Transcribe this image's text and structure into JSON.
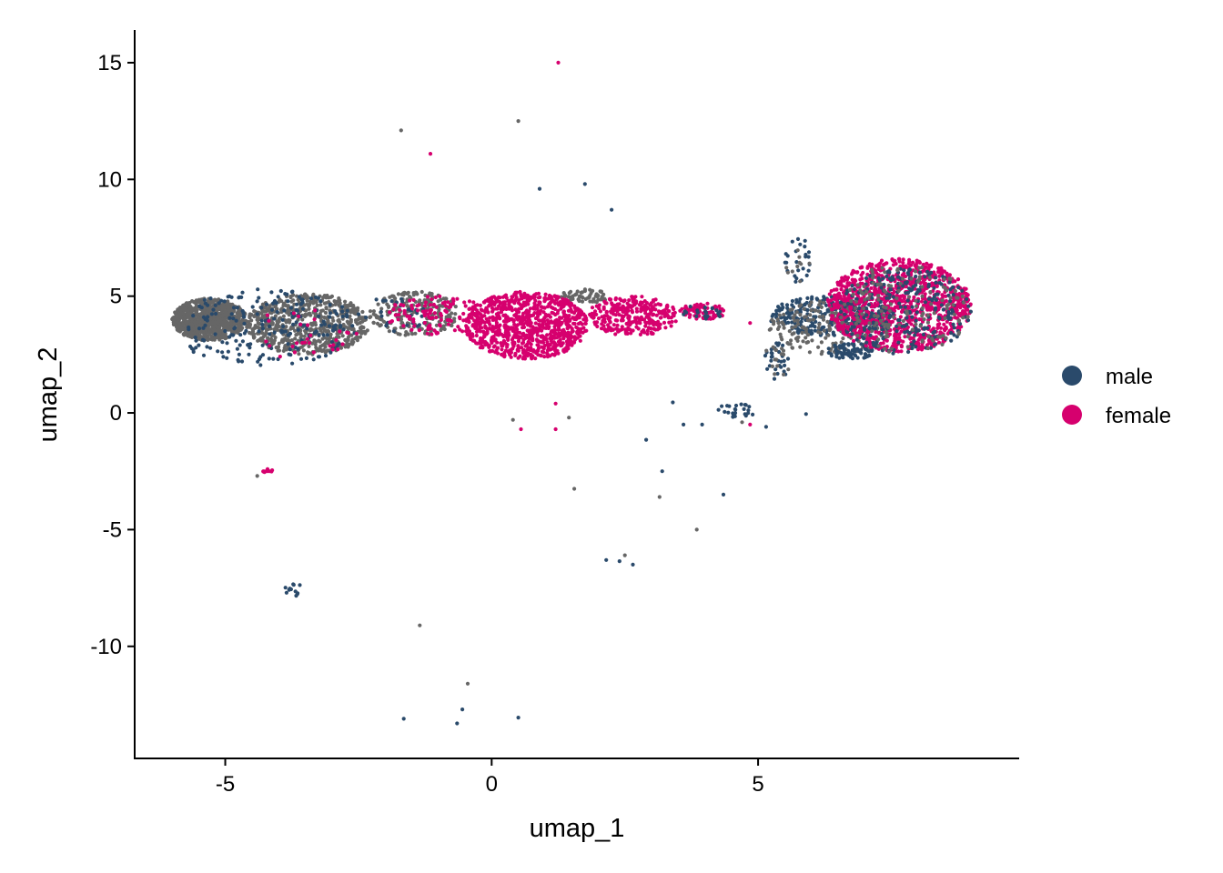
{
  "chart_data": {
    "type": "scatter",
    "title": "",
    "xlabel": "umap_1",
    "ylabel": "umap_2",
    "xlim": [
      -6.7,
      9.9
    ],
    "ylim": [
      -14.8,
      16.4
    ],
    "x_ticks": [
      {
        "value": -5,
        "label": "-5"
      },
      {
        "value": 0,
        "label": "0"
      },
      {
        "value": 5,
        "label": "5"
      }
    ],
    "y_ticks": [
      {
        "value": 15,
        "label": "15"
      },
      {
        "value": 10,
        "label": "10"
      },
      {
        "value": 5,
        "label": "5"
      },
      {
        "value": 0,
        "label": "0"
      },
      {
        "value": -5,
        "label": "-5"
      },
      {
        "value": -10,
        "label": "-10"
      }
    ],
    "grid": false,
    "legend_position": "right",
    "unlabeled_color": "#666666",
    "series": [
      {
        "name": "male",
        "color": "#2a4a6b"
      },
      {
        "name": "female",
        "color": "#d6006e"
      }
    ],
    "clusters": [
      {
        "group": "unlabeled",
        "n": 900,
        "x": [
          -6.0,
          -4.6
        ],
        "y": [
          3.1,
          4.9
        ]
      },
      {
        "group": "unlabeled",
        "n": 650,
        "x": [
          -4.6,
          -2.3
        ],
        "y": [
          2.5,
          5.1
        ]
      },
      {
        "group": "unlabeled",
        "n": 220,
        "x": [
          -2.3,
          -0.6
        ],
        "y": [
          3.3,
          5.2
        ]
      },
      {
        "group": "unlabeled",
        "n": 60,
        "x": [
          1.3,
          2.2
        ],
        "y": [
          4.7,
          5.3
        ]
      },
      {
        "group": "male",
        "n": 220,
        "x": [
          -6.0,
          -2.5
        ],
        "y": [
          2.0,
          5.3
        ]
      },
      {
        "group": "male",
        "n": 30,
        "x": [
          -2.5,
          -1.0
        ],
        "y": [
          3.5,
          5.0
        ]
      },
      {
        "group": "female",
        "n": 30,
        "x": [
          -4.8,
          -2.5
        ],
        "y": [
          2.3,
          4.5
        ]
      },
      {
        "group": "female",
        "n": 120,
        "x": [
          -2.0,
          0.0
        ],
        "y": [
          3.3,
          5.0
        ]
      },
      {
        "group": "female",
        "n": 900,
        "x": [
          -0.5,
          1.8
        ],
        "y": [
          2.3,
          5.2
        ]
      },
      {
        "group": "female",
        "n": 300,
        "x": [
          1.8,
          3.5
        ],
        "y": [
          3.3,
          5.0
        ]
      },
      {
        "group": "female",
        "n": 80,
        "x": [
          3.5,
          4.4
        ],
        "y": [
          4.0,
          4.7
        ]
      },
      {
        "group": "male",
        "n": 20,
        "x": [
          3.5,
          4.4
        ],
        "y": [
          4.0,
          4.6
        ]
      },
      {
        "group": "male",
        "n": 300,
        "x": [
          5.2,
          7.5
        ],
        "y": [
          3.3,
          5.0
        ]
      },
      {
        "group": "unlabeled",
        "n": 200,
        "x": [
          5.2,
          7.5
        ],
        "y": [
          2.5,
          4.8
        ]
      },
      {
        "group": "male",
        "n": 80,
        "x": [
          6.3,
          7.2
        ],
        "y": [
          2.3,
          3.0
        ]
      },
      {
        "group": "female",
        "n": 1100,
        "x": [
          6.3,
          9.0
        ],
        "y": [
          2.6,
          6.6
        ]
      },
      {
        "group": "male",
        "n": 260,
        "x": [
          6.5,
          9.0
        ],
        "y": [
          2.5,
          6.2
        ]
      },
      {
        "group": "unlabeled",
        "n": 140,
        "x": [
          6.5,
          9.0
        ],
        "y": [
          2.5,
          6.4
        ]
      },
      {
        "group": "male",
        "n": 25,
        "x": [
          5.5,
          6.0
        ],
        "y": [
          5.5,
          7.7
        ]
      },
      {
        "group": "unlabeled",
        "n": 10,
        "x": [
          5.5,
          6.0
        ],
        "y": [
          5.5,
          7.2
        ]
      },
      {
        "group": "male",
        "n": 30,
        "x": [
          5.1,
          5.6
        ],
        "y": [
          1.4,
          3.0
        ]
      },
      {
        "group": "unlabeled",
        "n": 15,
        "x": [
          5.1,
          5.6
        ],
        "y": [
          1.4,
          3.0
        ]
      },
      {
        "group": "male",
        "n": 25,
        "x": [
          4.2,
          5.0
        ],
        "y": [
          -0.2,
          0.4
        ]
      },
      {
        "group": "male",
        "n": 12,
        "x": [
          -3.9,
          -3.5
        ],
        "y": [
          -7.9,
          -7.3
        ]
      },
      {
        "group": "female",
        "n": 10,
        "x": [
          -4.3,
          -4.1
        ],
        "y": [
          -2.6,
          -2.4
        ]
      }
    ],
    "points": [
      {
        "group": "female",
        "x": 1.25,
        "y": 15.0
      },
      {
        "group": "unlabeled",
        "x": 0.5,
        "y": 12.5
      },
      {
        "group": "unlabeled",
        "x": -1.7,
        "y": 12.1
      },
      {
        "group": "female",
        "x": -1.15,
        "y": 11.1
      },
      {
        "group": "male",
        "x": 1.75,
        "y": 9.8
      },
      {
        "group": "male",
        "x": 0.9,
        "y": 9.6
      },
      {
        "group": "male",
        "x": 2.25,
        "y": 8.7
      },
      {
        "group": "female",
        "x": 1.2,
        "y": 0.4
      },
      {
        "group": "female",
        "x": 1.2,
        "y": -0.7
      },
      {
        "group": "unlabeled",
        "x": 1.45,
        "y": -0.2
      },
      {
        "group": "unlabeled",
        "x": 0.4,
        "y": -0.3
      },
      {
        "group": "female",
        "x": 0.55,
        "y": -0.7
      },
      {
        "group": "unlabeled",
        "x": 1.55,
        "y": -3.25
      },
      {
        "group": "male",
        "x": 3.4,
        "y": 0.45
      },
      {
        "group": "male",
        "x": 3.6,
        "y": -0.5
      },
      {
        "group": "male",
        "x": 3.95,
        "y": -0.5
      },
      {
        "group": "male",
        "x": 2.9,
        "y": -1.15
      },
      {
        "group": "male",
        "x": 3.2,
        "y": -2.5
      },
      {
        "group": "unlabeled",
        "x": 3.15,
        "y": -3.6
      },
      {
        "group": "male",
        "x": 4.35,
        "y": -3.5
      },
      {
        "group": "unlabeled",
        "x": 3.85,
        "y": -5.0
      },
      {
        "group": "male",
        "x": 2.15,
        "y": -6.3
      },
      {
        "group": "male",
        "x": 2.4,
        "y": -6.35
      },
      {
        "group": "unlabeled",
        "x": 2.5,
        "y": -6.1
      },
      {
        "group": "male",
        "x": 2.65,
        "y": -6.5
      },
      {
        "group": "female",
        "x": 4.85,
        "y": 3.85
      },
      {
        "group": "female",
        "x": 4.85,
        "y": -0.5
      },
      {
        "group": "male",
        "x": 5.15,
        "y": -0.6
      },
      {
        "group": "unlabeled",
        "x": 4.7,
        "y": -0.4
      },
      {
        "group": "male",
        "x": 5.9,
        "y": -0.05
      },
      {
        "group": "unlabeled",
        "x": -4.4,
        "y": -2.7
      },
      {
        "group": "unlabeled",
        "x": -1.35,
        "y": -9.1
      },
      {
        "group": "unlabeled",
        "x": -0.45,
        "y": -11.6
      },
      {
        "group": "male",
        "x": -0.55,
        "y": -12.7
      },
      {
        "group": "male",
        "x": -1.65,
        "y": -13.1
      },
      {
        "group": "male",
        "x": -0.65,
        "y": -13.3
      },
      {
        "group": "male",
        "x": 0.5,
        "y": -13.05
      }
    ]
  }
}
